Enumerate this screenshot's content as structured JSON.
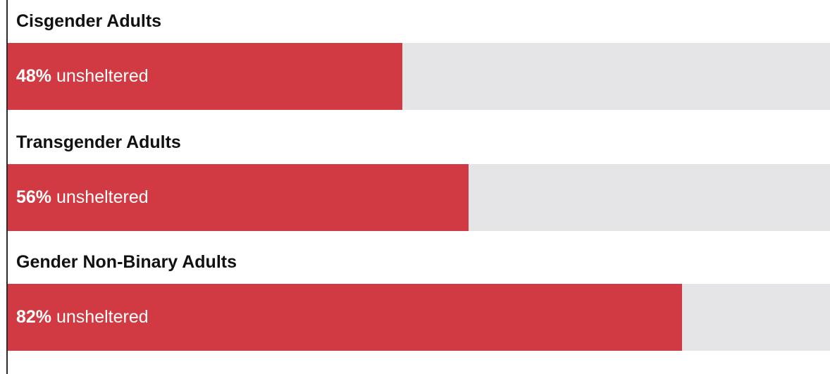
{
  "chart_data": {
    "type": "bar",
    "orientation": "horizontal",
    "categories": [
      "Cisgender Adults",
      "Transgender Adults",
      "Gender Non-Binary Adults"
    ],
    "values": [
      48,
      56,
      82
    ],
    "value_labels": [
      "48%",
      "56%",
      "82%"
    ],
    "value_suffix": "unsheltered",
    "xlim": [
      0,
      100
    ],
    "grid": false,
    "colors": {
      "bar": "#d13a42",
      "track": "#e5e5e8"
    }
  }
}
